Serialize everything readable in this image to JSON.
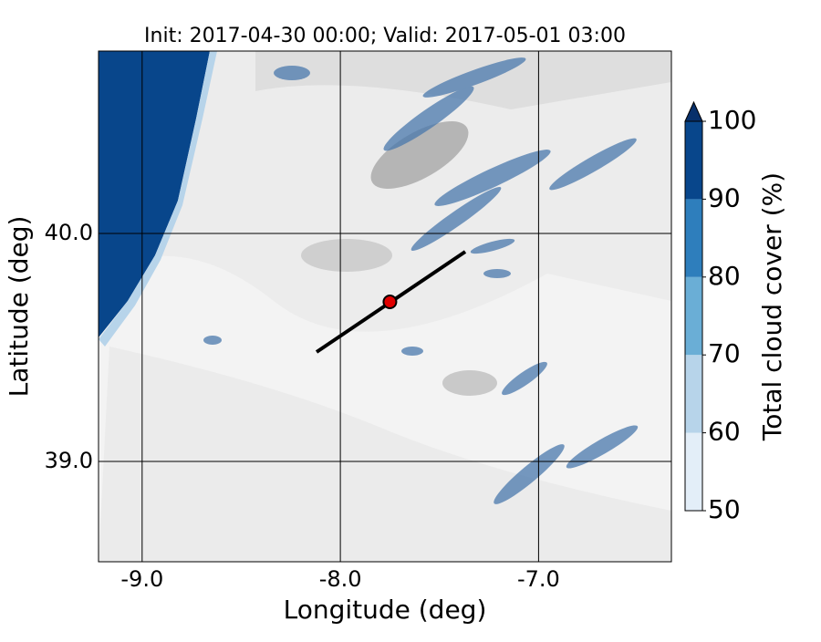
{
  "chart_data": {
    "type": "map",
    "title": "Init: 2017-04-30 00:00; Valid: 2017-05-01 03:00",
    "x_label": "Longitude (deg)",
    "y_label": "Latitude (deg)",
    "xlim": [
      -9.22,
      -6.33
    ],
    "ylim": [
      38.56,
      40.8
    ],
    "xticks": [
      {
        "value": -9,
        "label": "-9.0"
      },
      {
        "value": -8,
        "label": "-8.0"
      },
      {
        "value": -7,
        "label": "-7.0"
      }
    ],
    "yticks": [
      {
        "value": 39,
        "label": "39.0"
      },
      {
        "value": 40,
        "label": "40.0"
      }
    ],
    "grid": true,
    "section": {
      "lon": [
        -8.12,
        -7.37
      ],
      "lat": [
        39.48,
        39.92
      ],
      "color": "#000000"
    },
    "point": {
      "lon": -7.75,
      "lat": 39.7,
      "color": "#e00000"
    },
    "colorbar": {
      "label": "Total cloud cover (%)",
      "levels": [
        50,
        60,
        70,
        80,
        90,
        100
      ],
      "colors": [
        "#e3eef8",
        "#b7d4ea",
        "#6aaed6",
        "#2e7ebc",
        "#08468b"
      ],
      "extend_color": "#08306b",
      "ticks": [
        50,
        60,
        70,
        80,
        90,
        100
      ]
    }
  }
}
